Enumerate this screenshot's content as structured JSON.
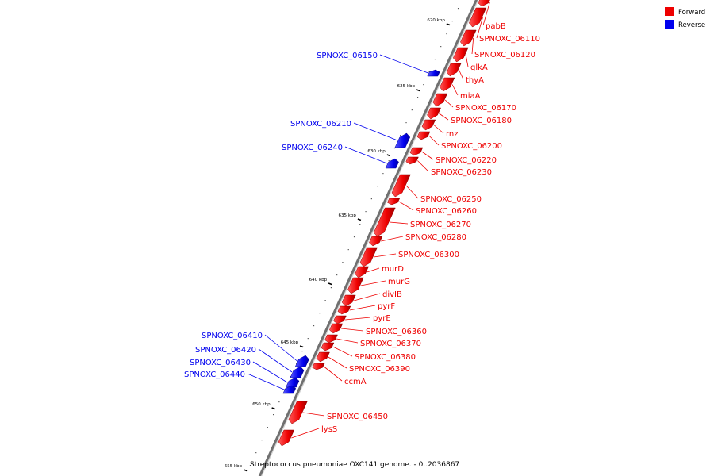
{
  "colors": {
    "forward": "#ee0000",
    "reverse": "#0000ee"
  },
  "legend": {
    "forward": "Forward",
    "reverse": "Reverse"
  },
  "caption": "Streptococcus pneumoniae OXC141 genome. - 0..2036867",
  "ticks": [
    {
      "pos": 620,
      "label": "620 kbp"
    },
    {
      "pos": 625,
      "label": "625 kbp"
    },
    {
      "pos": 630,
      "label": "630 kbp"
    },
    {
      "pos": 635,
      "label": "635 kbp"
    },
    {
      "pos": 640,
      "label": "640 kbp"
    },
    {
      "pos": 645,
      "label": "645 kbp"
    },
    {
      "pos": 650,
      "label": "650 kbp"
    },
    {
      "pos": 655,
      "label": "655 kbp"
    }
  ],
  "forward_genes": [
    "pabB",
    "SPNOXC_06110",
    "SPNOXC_06120",
    "glkA",
    "thyA",
    "miaA",
    "SPNOXC_06170",
    "SPNOXC_06180",
    "rnz",
    "SPNOXC_06200",
    "SPNOXC_06220",
    "SPNOXC_06230",
    "SPNOXC_06250",
    "SPNOXC_06260",
    "SPNOXC_06270",
    "SPNOXC_06280",
    "SPNOXC_06300",
    "murD",
    "murG",
    "divIB",
    "pyrF",
    "pyrE",
    "SPNOXC_06360",
    "SPNOXC_06370",
    "SPNOXC_06380",
    "SPNOXC_06390",
    "ccmA",
    "SPNOXC_06450",
    "lysS"
  ],
  "reverse_genes": [
    "SPNOXC_06150",
    "SPNOXC_06210",
    "SPNOXC_06240",
    "SPNOXC_06410",
    "SPNOXC_06420",
    "SPNOXC_06430",
    "SPNOXC_06440"
  ]
}
